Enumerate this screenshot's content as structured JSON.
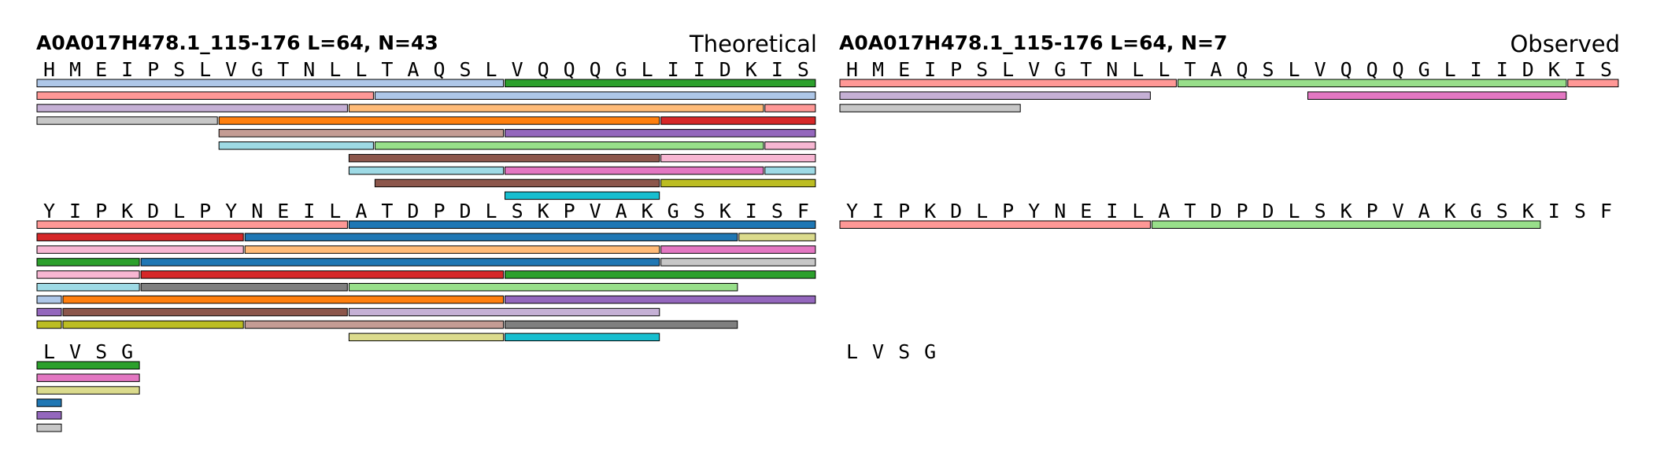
{
  "sequence": "HMEIPSLVGTNLLTAQSLVQQQGLIIDKISYIPKDLPYNEILATDPDLSKPVAKGSKISFLVSG",
  "residues_per_row": 30,
  "colors": {
    "blue_lt": "#aec7e8",
    "green": "#2ca02c",
    "salmon": "#ff9896",
    "lavender": "#c5b0d5",
    "peach": "#ffbb78",
    "gray_lt": "#c7c7c7",
    "orange": "#ff7f0e",
    "red": "#d62728",
    "tan": "#c49c94",
    "purple": "#9467bd",
    "sky": "#9edae5",
    "green_lt": "#98df8a",
    "pink_lt": "#f7b6d2",
    "brown": "#8c564b",
    "pink": "#e377c2",
    "olive": "#bcbd22",
    "cyan": "#17becf",
    "blue": "#1f77b4",
    "khaki": "#dbdb8d",
    "gray": "#7f7f7f"
  },
  "panels": [
    {
      "title": "A0A017H478.1_115-176  L=64, N=43",
      "label": "Theoretical",
      "peptides": [
        [
          0,
          17,
          "blue_lt"
        ],
        [
          18,
          29,
          "green"
        ],
        [
          0,
          12,
          "salmon"
        ],
        [
          13,
          29,
          "blue_lt"
        ],
        [
          0,
          11,
          "lavender"
        ],
        [
          12,
          27,
          "peach"
        ],
        [
          28,
          29,
          "salmon"
        ],
        [
          0,
          6,
          "gray_lt"
        ],
        [
          7,
          23,
          "orange"
        ],
        [
          24,
          29,
          "red"
        ],
        [
          7,
          17,
          "tan"
        ],
        [
          18,
          29,
          "purple"
        ],
        [
          7,
          12,
          "sky"
        ],
        [
          13,
          27,
          "green_lt"
        ],
        [
          28,
          29,
          "pink_lt"
        ],
        [
          12,
          23,
          "brown"
        ],
        [
          24,
          29,
          "pink_lt"
        ],
        [
          12,
          17,
          "sky"
        ],
        [
          18,
          27,
          "pink"
        ],
        [
          28,
          29,
          "sky"
        ],
        [
          13,
          23,
          "brown"
        ],
        [
          24,
          29,
          "olive"
        ],
        [
          18,
          23,
          "cyan"
        ],
        [
          30,
          41,
          "salmon"
        ],
        [
          42,
          59,
          "blue"
        ],
        [
          30,
          37,
          "red"
        ],
        [
          38,
          56,
          "blue"
        ],
        [
          57,
          59,
          "khaki"
        ],
        [
          30,
          37,
          "pink_lt"
        ],
        [
          38,
          53,
          "peach"
        ],
        [
          54,
          59,
          "pink"
        ],
        [
          30,
          33,
          "green"
        ],
        [
          34,
          53,
          "blue"
        ],
        [
          54,
          59,
          "gray_lt"
        ],
        [
          30,
          33,
          "pink_lt"
        ],
        [
          34,
          47,
          "red"
        ],
        [
          48,
          59,
          "green"
        ],
        [
          30,
          33,
          "sky"
        ],
        [
          34,
          41,
          "gray"
        ],
        [
          42,
          56,
          "green_lt"
        ],
        [
          30,
          30,
          "blue_lt"
        ],
        [
          31,
          47,
          "orange"
        ],
        [
          48,
          59,
          "purple"
        ],
        [
          30,
          30,
          "purple"
        ],
        [
          31,
          41,
          "brown"
        ],
        [
          42,
          53,
          "lavender"
        ],
        [
          30,
          30,
          "olive"
        ],
        [
          31,
          37,
          "olive"
        ],
        [
          38,
          47,
          "tan"
        ],
        [
          48,
          56,
          "gray"
        ],
        [
          42,
          47,
          "khaki"
        ],
        [
          48,
          53,
          "cyan"
        ],
        [
          60,
          63,
          "green"
        ],
        [
          60,
          63,
          "pink"
        ],
        [
          60,
          63,
          "khaki"
        ],
        [
          60,
          60,
          "blue"
        ],
        [
          60,
          60,
          "purple"
        ],
        [
          60,
          60,
          "gray_lt"
        ]
      ]
    },
    {
      "title": "A0A017H478.1_115-176  L=64, N=7",
      "label": "Observed",
      "peptides": [
        [
          0,
          12,
          "salmon"
        ],
        [
          13,
          27,
          "green_lt"
        ],
        [
          28,
          29,
          "salmon"
        ],
        [
          0,
          11,
          "lavender"
        ],
        [
          18,
          27,
          "pink"
        ],
        [
          0,
          6,
          "gray_lt"
        ],
        [
          30,
          41,
          "salmon"
        ],
        [
          42,
          56,
          "green_lt"
        ]
      ]
    }
  ]
}
